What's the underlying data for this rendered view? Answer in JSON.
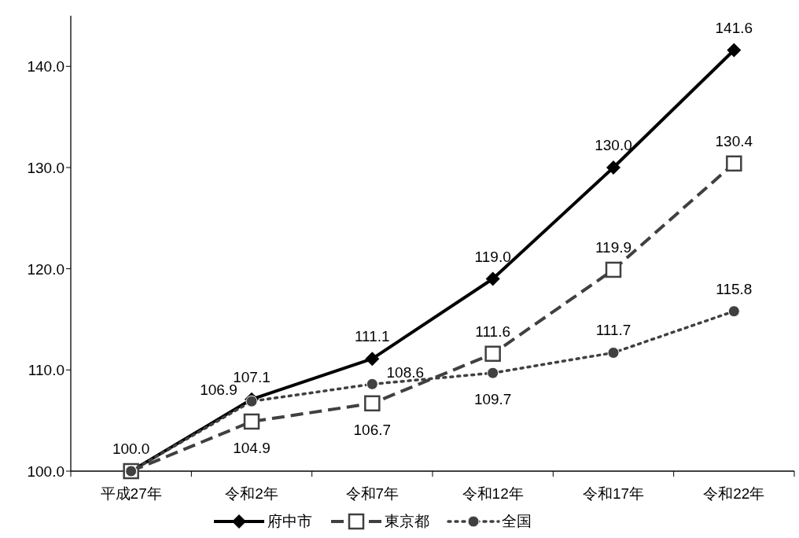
{
  "chart_data": {
    "type": "line",
    "categories": [
      "平成27年",
      "令和2年",
      "令和7年",
      "令和12年",
      "令和17年",
      "令和22年"
    ],
    "series": [
      {
        "name": "府中市",
        "color": "#000000",
        "marker": "diamond",
        "line_style": "solid",
        "values": [
          100.0,
          107.1,
          111.1,
          119.0,
          130.0,
          141.6
        ],
        "value_labels": [
          "100.0",
          "107.1",
          "111.1",
          "119.0",
          "130.0",
          "141.6"
        ]
      },
      {
        "name": "東京都",
        "color": "#404040",
        "marker": "square",
        "line_style": "dashed",
        "values": [
          100.0,
          104.9,
          106.7,
          111.6,
          119.9,
          130.4
        ],
        "value_labels": [
          null,
          "104.9",
          "106.7",
          "111.6",
          "119.9",
          "130.4"
        ]
      },
      {
        "name": "全国",
        "color": "#404040",
        "marker": "circle",
        "line_style": "dotted",
        "values": [
          100.0,
          106.9,
          108.6,
          109.7,
          111.7,
          115.8
        ],
        "value_labels": [
          null,
          "106.9",
          "108.6",
          "109.7",
          "111.7",
          "115.8"
        ]
      }
    ],
    "ylim": [
      100,
      145
    ],
    "yticks": [
      {
        "value": 100,
        "label": "100.0"
      },
      {
        "value": 110,
        "label": "110.0"
      },
      {
        "value": 120,
        "label": "120.0"
      },
      {
        "value": 130,
        "label": "130.0"
      },
      {
        "value": 140,
        "label": "140.0"
      }
    ],
    "grid": false,
    "legend": "bottom"
  }
}
